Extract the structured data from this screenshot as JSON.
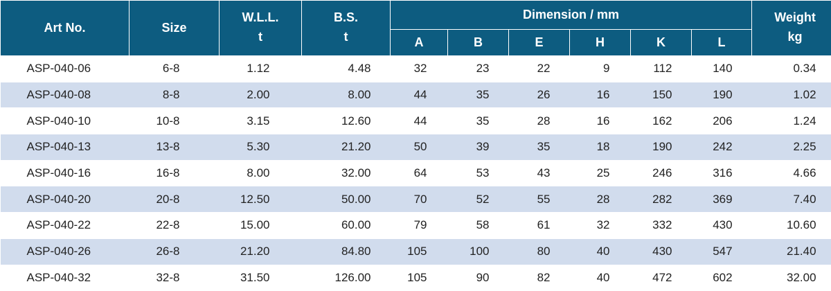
{
  "headers": {
    "art_no": "Art No.",
    "size": "Size",
    "wll": "W.L.L.",
    "wll_unit": "t",
    "bs": "B.S.",
    "bs_unit": "t",
    "dimension": "Dimension / mm",
    "dim_cols": [
      "A",
      "B",
      "E",
      "H",
      "K",
      "L"
    ],
    "weight": "Weight",
    "weight_unit": "kg"
  },
  "rows": [
    [
      "ASP-040-06",
      "6-8",
      "1.12",
      "4.48",
      "32",
      "23",
      "22",
      "9",
      "112",
      "140",
      "0.34"
    ],
    [
      "ASP-040-08",
      "8-8",
      "2.00",
      "8.00",
      "44",
      "35",
      "26",
      "16",
      "150",
      "190",
      "1.02"
    ],
    [
      "ASP-040-10",
      "10-8",
      "3.15",
      "12.60",
      "44",
      "35",
      "28",
      "16",
      "162",
      "206",
      "1.24"
    ],
    [
      "ASP-040-13",
      "13-8",
      "5.30",
      "21.20",
      "50",
      "39",
      "35",
      "18",
      "190",
      "242",
      "2.25"
    ],
    [
      "ASP-040-16",
      "16-8",
      "8.00",
      "32.00",
      "64",
      "53",
      "43",
      "25",
      "246",
      "316",
      "4.66"
    ],
    [
      "ASP-040-20",
      "20-8",
      "12.50",
      "50.00",
      "70",
      "52",
      "55",
      "28",
      "282",
      "369",
      "7.40"
    ],
    [
      "ASP-040-22",
      "22-8",
      "15.00",
      "60.00",
      "79",
      "58",
      "61",
      "32",
      "332",
      "430",
      "10.60"
    ],
    [
      "ASP-040-26",
      "26-8",
      "21.20",
      "84.80",
      "105",
      "100",
      "80",
      "40",
      "430",
      "547",
      "21.40"
    ],
    [
      "ASP-040-32",
      "32-8",
      "31.50",
      "126.00",
      "105",
      "90",
      "82",
      "40",
      "472",
      "602",
      "32.00"
    ]
  ],
  "colors": {
    "header_bg": "#0d5c80",
    "stripe_bg": "#d1dced"
  }
}
